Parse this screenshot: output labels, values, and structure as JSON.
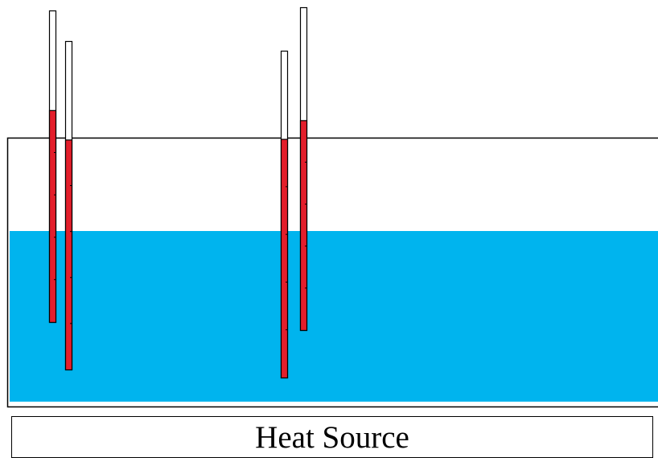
{
  "heat_source": {
    "label": "Heat Source"
  },
  "colors": {
    "water": "#00b4ee",
    "mercury": "#e31e2b",
    "outline": "#000000",
    "glass": "#ffffff"
  },
  "scene": {
    "water_level_fraction_of_tank": 0.65,
    "thermometers": [
      {
        "id": "thermometer-1",
        "fill_fraction": 0.68
      },
      {
        "id": "thermometer-2",
        "fill_fraction": 0.7
      },
      {
        "id": "thermometer-3",
        "fill_fraction": 0.73
      },
      {
        "id": "thermometer-4",
        "fill_fraction": 0.65
      }
    ]
  }
}
